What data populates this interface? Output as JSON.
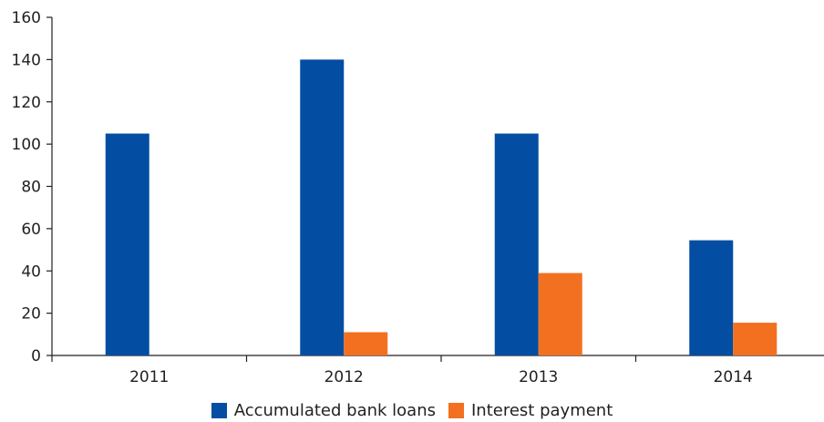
{
  "chart_data": {
    "type": "bar",
    "categories": [
      "2011",
      "2012",
      "2013",
      "2014"
    ],
    "series": [
      {
        "name": "Accumulated bank loans",
        "color": "#034ea2",
        "values": [
          105,
          140,
          105,
          54.5
        ]
      },
      {
        "name": "Interest payment",
        "color": "#f37021",
        "values": [
          0,
          11,
          39,
          15.5
        ]
      }
    ],
    "ylim": [
      0,
      160
    ],
    "yticks": [
      "0",
      "20",
      "40",
      "60",
      "80",
      "100",
      "120",
      "140",
      "160"
    ],
    "grid": false,
    "legend_position": "bottom-center"
  }
}
